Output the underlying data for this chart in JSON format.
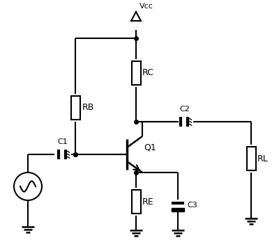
{
  "bg_color": "#ffffff",
  "vcc_label": "Vcc",
  "rb_label": "RB",
  "rc_label": "RC",
  "re_label": "RE",
  "rl_label": "RL",
  "c1_label": "C1",
  "c2_label": "C2",
  "c3_label": "C3",
  "q1_label": "Q1",
  "figsize": [
    4.0,
    3.58
  ],
  "dpi": 100
}
